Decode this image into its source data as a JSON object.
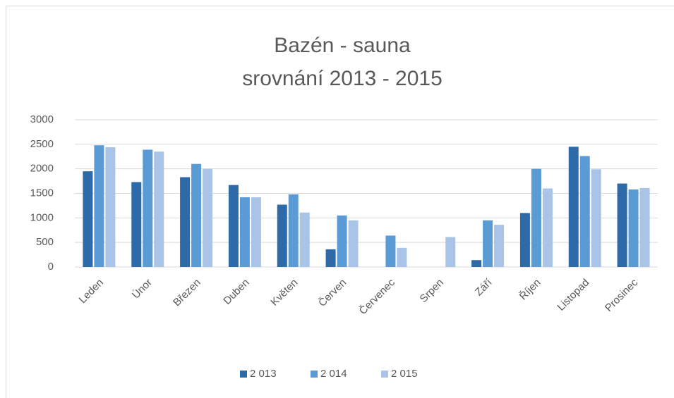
{
  "chart_data": {
    "type": "bar",
    "title": "Bazén  - sauna",
    "subtitle": "srovnání 2013 - 2015",
    "categories": [
      "Leden",
      "Únor",
      "Březen",
      "Duben",
      "Květen",
      "Červen",
      "Červenec",
      "Srpen",
      "Září",
      "Říjen",
      "Listopad",
      "Prosinec"
    ],
    "series": [
      {
        "name": "2 013",
        "color": "#2e6aa8",
        "values": [
          1950,
          1730,
          1830,
          1670,
          1270,
          360,
          0,
          0,
          140,
          1100,
          2450,
          1700
        ]
      },
      {
        "name": "2 014",
        "color": "#5b9bd5",
        "values": [
          2480,
          2390,
          2100,
          1420,
          1480,
          1050,
          640,
          0,
          950,
          2000,
          2260,
          1580
        ]
      },
      {
        "name": "2 015",
        "color": "#a9c4e6",
        "values": [
          2440,
          2350,
          2000,
          1420,
          1110,
          950,
          390,
          610,
          860,
          1600,
          1990,
          1610
        ]
      }
    ],
    "ylim": [
      0,
      3000
    ],
    "yticks": [
      0,
      500,
      1000,
      1500,
      2000,
      2500,
      3000
    ],
    "grid": true,
    "legend": "bottom"
  }
}
